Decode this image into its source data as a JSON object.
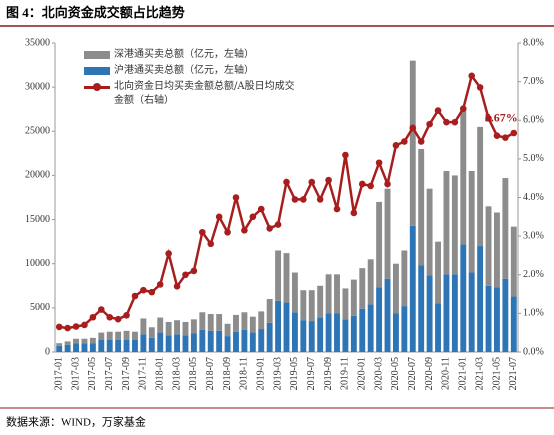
{
  "title": "图 4：北向资金成交额占比趋势",
  "source": "数据来源：WIND，万家基金",
  "chart_data": {
    "type": "bar-line",
    "categories": [
      "2017-01",
      null,
      "2017-03",
      null,
      "2017-05",
      null,
      "2017-07",
      null,
      "2017-09",
      null,
      "2017-11",
      null,
      "2018-01",
      null,
      "2018-03",
      null,
      "2018-05",
      null,
      "2018-07",
      null,
      "2018-09",
      null,
      "2018-11",
      null,
      "2019-01",
      null,
      "2019-03",
      null,
      "2019-05",
      null,
      "2019-07",
      null,
      "2019-09",
      null,
      "2019-11",
      null,
      "2020-01",
      null,
      "2020-03",
      null,
      "2020-05",
      null,
      "2020-07",
      null,
      "2020-09",
      null,
      "2020-11",
      null,
      "2021-01",
      null,
      "2021-03",
      null,
      "2021-05",
      null,
      "2021-07"
    ],
    "series": [
      {
        "name": "深港通买卖总额（亿元，左轴）",
        "color": "#8c8c8c",
        "stack_order": 1,
        "values": [
          300,
          400,
          500,
          500,
          600,
          800,
          900,
          900,
          1000,
          900,
          1800,
          1200,
          1700,
          1500,
          1600,
          1500,
          1600,
          2000,
          1900,
          1900,
          1400,
          1900,
          2000,
          1800,
          2000,
          2700,
          5700,
          5600,
          4500,
          3400,
          3500,
          3600,
          4400,
          4400,
          3500,
          4100,
          4600,
          5100,
          9700,
          10200,
          5600,
          6300,
          18700,
          13200,
          9800,
          7000,
          11700,
          11200,
          15300,
          11500,
          13500,
          9000,
          8500,
          11400,
          7900
        ]
      },
      {
        "name": "沪港通买卖总额（亿元，左轴）",
        "color": "#2e75b6",
        "stack_order": 0,
        "values": [
          700,
          800,
          1000,
          1000,
          1000,
          1400,
          1400,
          1400,
          1400,
          1400,
          2000,
          1600,
          2200,
          1900,
          2000,
          1900,
          2100,
          2500,
          2400,
          2400,
          1800,
          2300,
          2500,
          2200,
          2600,
          3300,
          5800,
          5600,
          4500,
          3600,
          3500,
          3900,
          4400,
          4400,
          3700,
          4100,
          4900,
          5400,
          7300,
          8300,
          4400,
          5200,
          14300,
          9800,
          8700,
          5500,
          8800,
          8800,
          12200,
          9000,
          12000,
          7500,
          7300,
          8300,
          6300
        ]
      },
      {
        "name": "北向资金日均买卖金额总额/A股日均成交金额（右轴）",
        "color": "#a81d1d",
        "axis": "y2",
        "values": [
          0.65,
          0.62,
          0.66,
          0.7,
          0.9,
          1.1,
          0.9,
          0.85,
          0.95,
          1.45,
          1.6,
          1.55,
          1.75,
          2.55,
          1.7,
          2.0,
          2.1,
          3.1,
          2.8,
          3.5,
          3.1,
          4.0,
          3.15,
          3.5,
          3.7,
          3.2,
          3.3,
          4.4,
          3.95,
          3.95,
          4.4,
          3.95,
          4.45,
          3.7,
          5.1,
          3.6,
          4.35,
          4.3,
          4.9,
          4.35,
          5.35,
          5.45,
          5.8,
          5.45,
          5.9,
          6.25,
          5.95,
          5.95,
          6.3,
          7.15,
          6.85,
          6.05,
          5.6,
          5.55,
          5.67
        ]
      }
    ],
    "annotation": {
      "text": "5.67%",
      "index": 54
    },
    "ylim": [
      0,
      35000
    ],
    "yticks": [
      0,
      5000,
      10000,
      15000,
      20000,
      25000,
      30000,
      35000
    ],
    "y2lim": [
      0,
      8
    ],
    "y2ticks": [
      {
        "value": 0,
        "label": "0.0%"
      },
      {
        "value": 1,
        "label": "1.0%"
      },
      {
        "value": 2,
        "label": "2.0%"
      },
      {
        "value": 3,
        "label": "3.0%"
      },
      {
        "value": 4,
        "label": "4.0%"
      },
      {
        "value": 5,
        "label": "5.0%"
      },
      {
        "value": 6,
        "label": "6.0%"
      },
      {
        "value": 7,
        "label": "7.0%"
      },
      {
        "value": 8,
        "label": "8.0%"
      }
    ]
  }
}
